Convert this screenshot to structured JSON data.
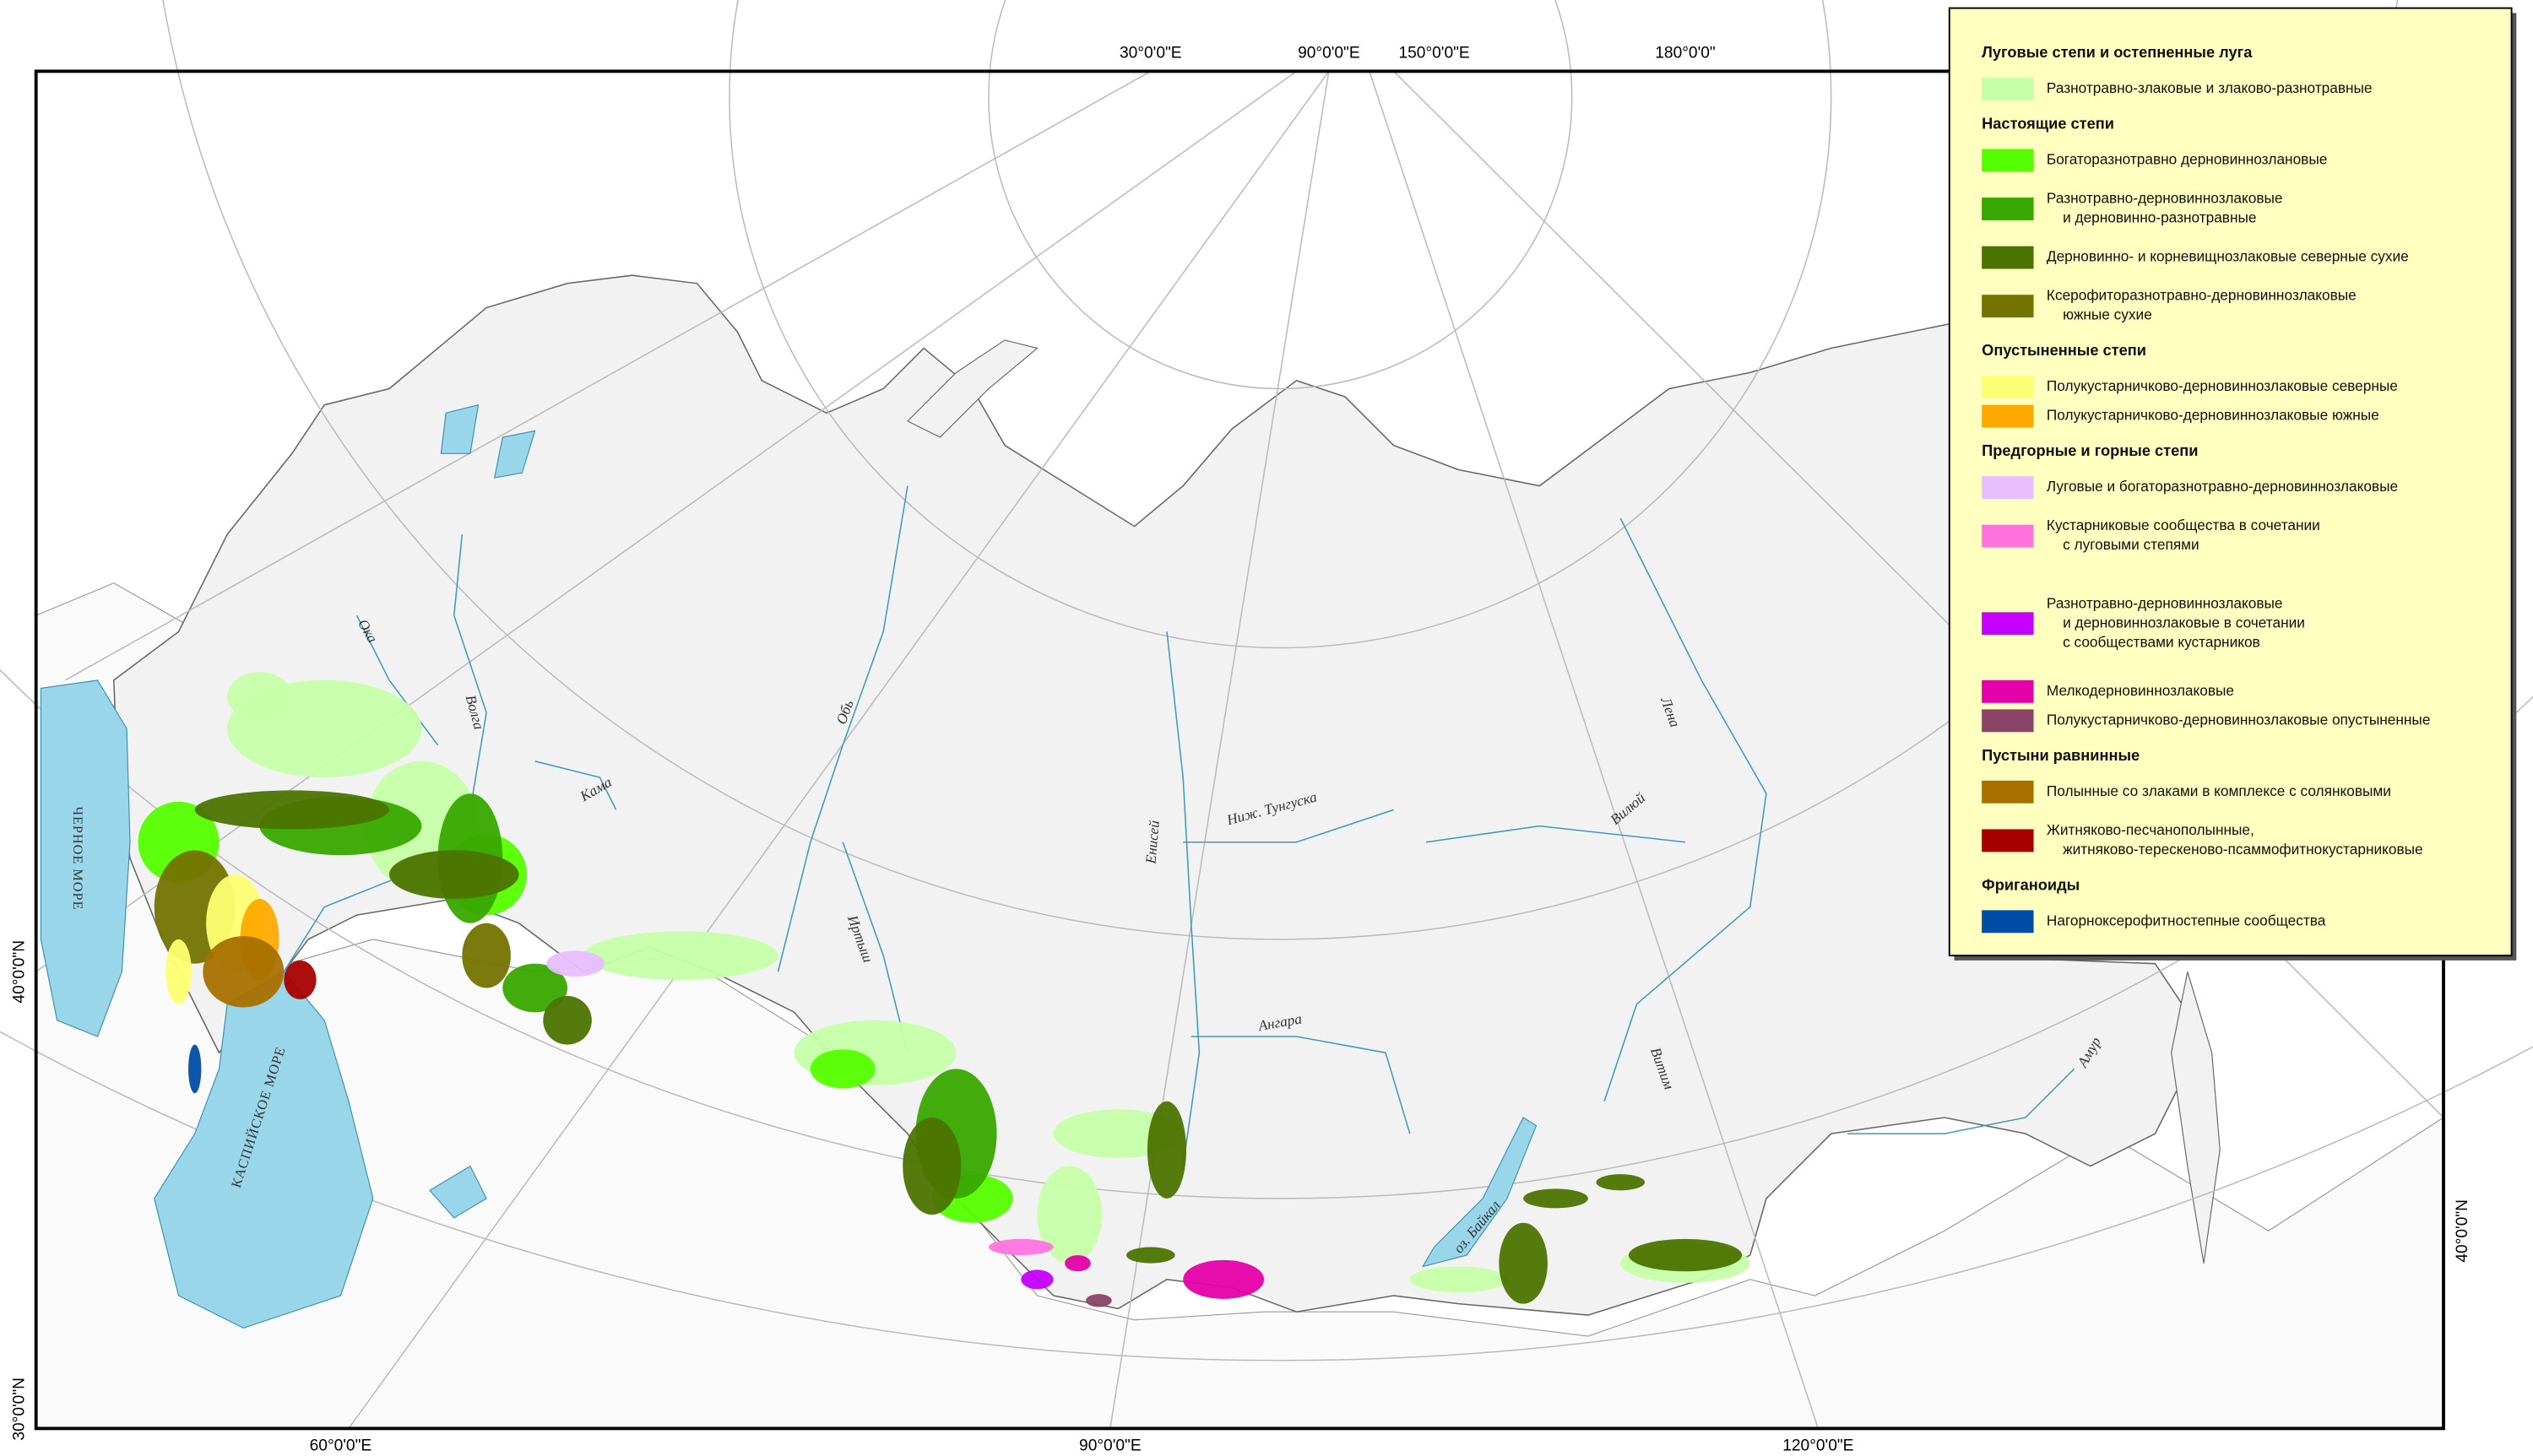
{
  "map": {
    "graticule_labels": {
      "top": [
        "30°0'0\"E",
        "90°0'0\"E",
        "150°0'0\"E",
        "180°0'0\""
      ],
      "bottom": [
        "60°0'0\"E",
        "90°0'0\"E",
        "120°0'0\"E"
      ],
      "left": [
        "40°0'0\"N",
        "30°0'0\"N"
      ],
      "right": [
        "40°0'0\"N"
      ]
    },
    "water_labels": [
      "ЧЕРНОЕ МОРЕ",
      "КАСПИЙСКОЕ МОРЕ",
      "Ока",
      "Волга",
      "Кама",
      "Обь",
      "Иртыш",
      "Енисей",
      "Ниж. Тунгуска",
      "Ангара",
      "Вилюй",
      "Лена",
      "Витим",
      "Амур",
      "оз. Байкал"
    ],
    "legend": {
      "groups": [
        {
          "title": "Луговые степи и остепненные луга",
          "items": [
            {
              "label": [
                "Разнотравно-злаковые и злаково-разнотравные"
              ],
              "color": "#c6ffa8"
            }
          ]
        },
        {
          "title": "Настоящие степи",
          "items": [
            {
              "label": [
                "Богаторазнотравно дерновиннозлановые"
              ],
              "color": "#55ff00"
            },
            {
              "label": [
                "Разнотравно-дерновиннозлаковые",
                "и дерновинно-разнотравные"
              ],
              "color": "#38a800"
            },
            {
              "label": [
                "Дерновинно- и корневищнозлаковые северные сухие"
              ],
              "color": "#4c7300"
            },
            {
              "label": [
                "Ксерофиторазнотравно-дерновиннозлаковые",
                "южные сухие"
              ],
              "color": "#737300"
            }
          ]
        },
        {
          "title": "Опустыненные степи",
          "items": [
            {
              "label": [
                "Полукустарничково-дерновиннозлаковые северные"
              ],
              "color": "#ffff73"
            },
            {
              "label": [
                "Полукустарничково-дерновиннозлаковые южные"
              ],
              "color": "#ffaa00"
            }
          ]
        },
        {
          "title": "Предгорные и горные степи",
          "items": [
            {
              "label": [
                "Луговые и богаторазнотравно-дерновиннозлаковые"
              ],
              "color": "#e8beff"
            },
            {
              "label": [
                "Кустарниковые сообщества в сочетании",
                "с луговыми степями"
              ],
              "color": "#ff73df"
            },
            {
              "label": [
                "Разнотравно-дерновиннозлаковые",
                "и дерновиннозлаковые в сочетании",
                "с сообществами кустарников"
              ],
              "color": "#c500ff"
            },
            {
              "label": [
                "Мелкодерновиннозлаковые"
              ],
              "color": "#e600a9"
            },
            {
              "label": [
                "Полукустарничково-дерновиннозлаковые опустыненные"
              ],
              "color": "#8a4466"
            }
          ]
        },
        {
          "title": "Пустыни равнинные",
          "items": [
            {
              "label": [
                "Полынные со злаками в комплексе с солянковыми"
              ],
              "color": "#a87000"
            },
            {
              "label": [
                "Житняково-песчанополынные,",
                "житняково-терескеново-псаммофитнокустарниковые"
              ],
              "color": "#a80000"
            }
          ]
        },
        {
          "title": "Фриганоиды",
          "items": [
            {
              "label": [
                "Нагорноксерофитностепные сообщества"
              ],
              "color": "#004da8"
            }
          ]
        }
      ]
    }
  }
}
